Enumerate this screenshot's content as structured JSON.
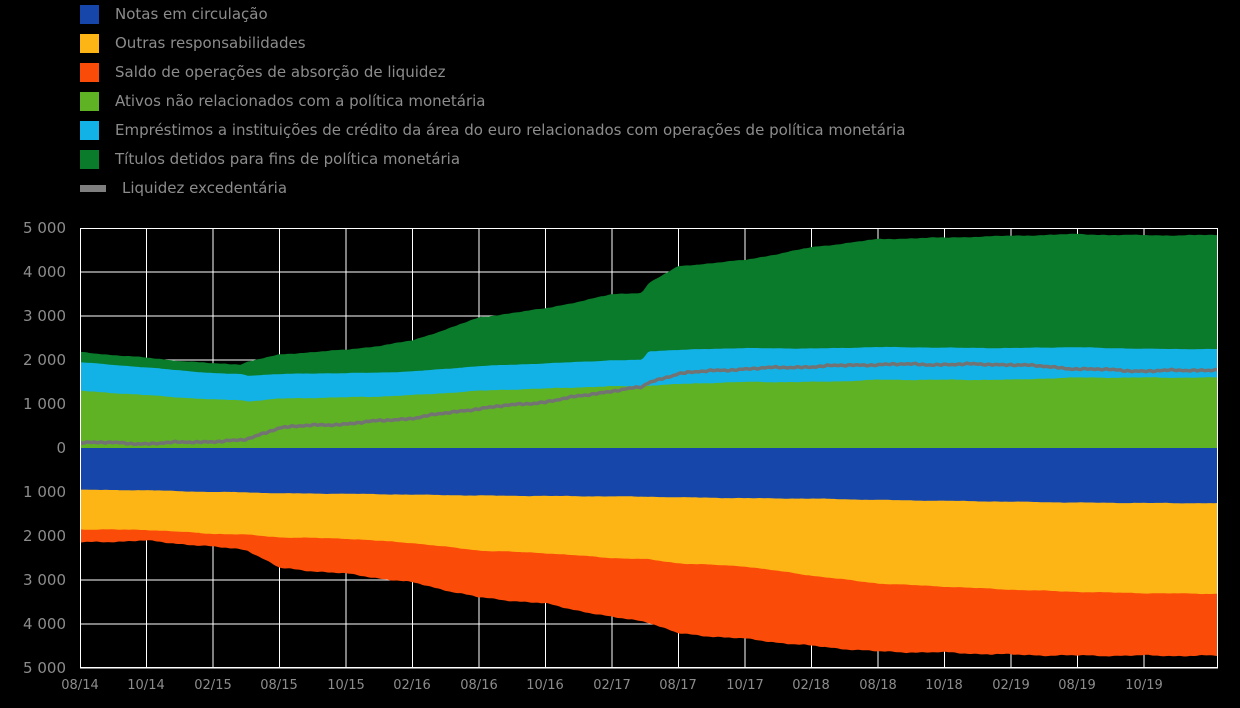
{
  "page": {
    "background": "#000000",
    "text_color": "#8c8c8c",
    "grid_color": "#ffffff"
  },
  "legend": [
    {
      "label": "Notas em circulação",
      "color": "#1646a9",
      "marker": "square"
    },
    {
      "label": "Outras responsabilidades",
      "color": "#fcb515",
      "marker": "square"
    },
    {
      "label": "Saldo de operações de absorção de liquidez",
      "color": "#fb4b09",
      "marker": "square"
    },
    {
      "label": "Ativos não relacionados com a política monetária",
      "color": "#5fb224",
      "marker": "square"
    },
    {
      "label": "Empréstimos a instituições de crédito da área do euro relacionados com operações de política monetária",
      "color": "#12b2e6",
      "marker": "square"
    },
    {
      "label": "Títulos detidos para fins de política monetária",
      "color": "#0a7b2a",
      "marker": "square"
    },
    {
      "label": "Liquidez excedentária",
      "color": "#7f7f7f",
      "marker": "line"
    }
  ],
  "chart_data": {
    "type": "area",
    "stacking": "diverging-stacked",
    "title": "",
    "xlabel": "",
    "ylabel": "",
    "grid": true,
    "legend_position": "top-left",
    "ylim": [
      -5000,
      5000
    ],
    "y_tick_labels": [
      "5 000",
      "4 000",
      "3 000",
      "2 000",
      "1 000",
      "0",
      "1 000",
      "2 000",
      "3 000",
      "4 000",
      "5 000"
    ],
    "x_tick_labels": [
      "08/14",
      "10/14",
      "02/15",
      "08/15",
      "10/15",
      "02/16",
      "08/16",
      "10/16",
      "02/17",
      "08/17",
      "10/17",
      "02/18",
      "08/18",
      "10/18",
      "02/19",
      "08/19",
      "10/19"
    ],
    "anchors_x": [
      0,
      0.5,
      1,
      1.5,
      2,
      2.42,
      2.52,
      3,
      3.5,
      4,
      4.5,
      5,
      5.5,
      6,
      6.5,
      7,
      7.5,
      8,
      8.45,
      8.55,
      9,
      9.5,
      10,
      10.5,
      11,
      11.5,
      12,
      12.5,
      13,
      13.5,
      14,
      14.5,
      15,
      15.5,
      16,
      16.5,
      17.1
    ],
    "series_positive": [
      {
        "name": "Ativos não relacionados com a política monetária",
        "color": "#5fb224",
        "values": [
          1300,
          1250,
          1200,
          1150,
          1100,
          1090,
          1060,
          1120,
          1140,
          1150,
          1170,
          1200,
          1250,
          1300,
          1330,
          1350,
          1380,
          1400,
          1410,
          1420,
          1450,
          1480,
          1500,
          1500,
          1500,
          1520,
          1550,
          1550,
          1550,
          1550,
          1550,
          1580,
          1600,
          1600,
          1600,
          1600,
          1600
        ]
      },
      {
        "name": "Empréstimos a instituições de crédito da área do euro relacionados com operações de política monetária",
        "color": "#12b2e6",
        "values": [
          650,
          640,
          630,
          615,
          600,
          590,
          585,
          560,
          555,
          550,
          545,
          540,
          550,
          560,
          565,
          570,
          580,
          590,
          595,
          780,
          778,
          775,
          770,
          765,
          760,
          755,
          745,
          738,
          730,
          725,
          720,
          705,
          690,
          670,
          655,
          650,
          648
        ]
      },
      {
        "name": "Títulos detidos para fins de política monetária",
        "color": "#0a7b2a",
        "values": [
          230,
          225,
          220,
          218,
          220,
          225,
          320,
          440,
          490,
          530,
          610,
          700,
          900,
          1100,
          1180,
          1250,
          1370,
          1500,
          1530,
          1550,
          1900,
          1950,
          2000,
          2150,
          2300,
          2380,
          2450,
          2480,
          2500,
          2530,
          2550,
          2560,
          2570,
          2575,
          2580,
          2585,
          2590
        ]
      }
    ],
    "series_negative": [
      {
        "name": "Notas em circulação",
        "color": "#1646a9",
        "values": [
          950,
          955,
          960,
          980,
          1000,
          1005,
          1008,
          1030,
          1035,
          1040,
          1050,
          1060,
          1070,
          1080,
          1085,
          1090,
          1095,
          1100,
          1105,
          1107,
          1120,
          1130,
          1140,
          1145,
          1150,
          1165,
          1180,
          1190,
          1200,
          1210,
          1220,
          1230,
          1240,
          1245,
          1250,
          1252,
          1255
        ]
      },
      {
        "name": "Outras responsabilidades",
        "color": "#fcb515",
        "values": [
          900,
          900,
          900,
          925,
          950,
          960,
          965,
          1000,
          1010,
          1020,
          1060,
          1100,
          1175,
          1250,
          1275,
          1300,
          1350,
          1400,
          1420,
          1425,
          1500,
          1525,
          1550,
          1650,
          1750,
          1825,
          1900,
          1925,
          1950,
          1975,
          2000,
          2015,
          2030,
          2040,
          2050,
          2055,
          2060
        ]
      },
      {
        "name": "Saldo de operações de absorção de liquidez",
        "color": "#fb4b09",
        "values": [
          300,
          270,
          250,
          270,
          300,
          330,
          350,
          700,
          750,
          800,
          850,
          900,
          985,
          1070,
          1110,
          1150,
          1250,
          1350,
          1400,
          1430,
          1600,
          1625,
          1650,
          1625,
          1600,
          1575,
          1550,
          1525,
          1500,
          1490,
          1480,
          1465,
          1450,
          1435,
          1420,
          1415,
          1410
        ]
      }
    ],
    "line_series": {
      "name": "Liquidez excedentária",
      "color": "#737373",
      "values": [
        130,
        115,
        100,
        125,
        150,
        170,
        200,
        470,
        510,
        550,
        615,
        680,
        790,
        900,
        975,
        1050,
        1175,
        1300,
        1380,
        1480,
        1700,
        1750,
        1800,
        1825,
        1850,
        1875,
        1900,
        1900,
        1900,
        1900,
        1900,
        1850,
        1800,
        1775,
        1750,
        1760,
        1780
      ]
    }
  }
}
